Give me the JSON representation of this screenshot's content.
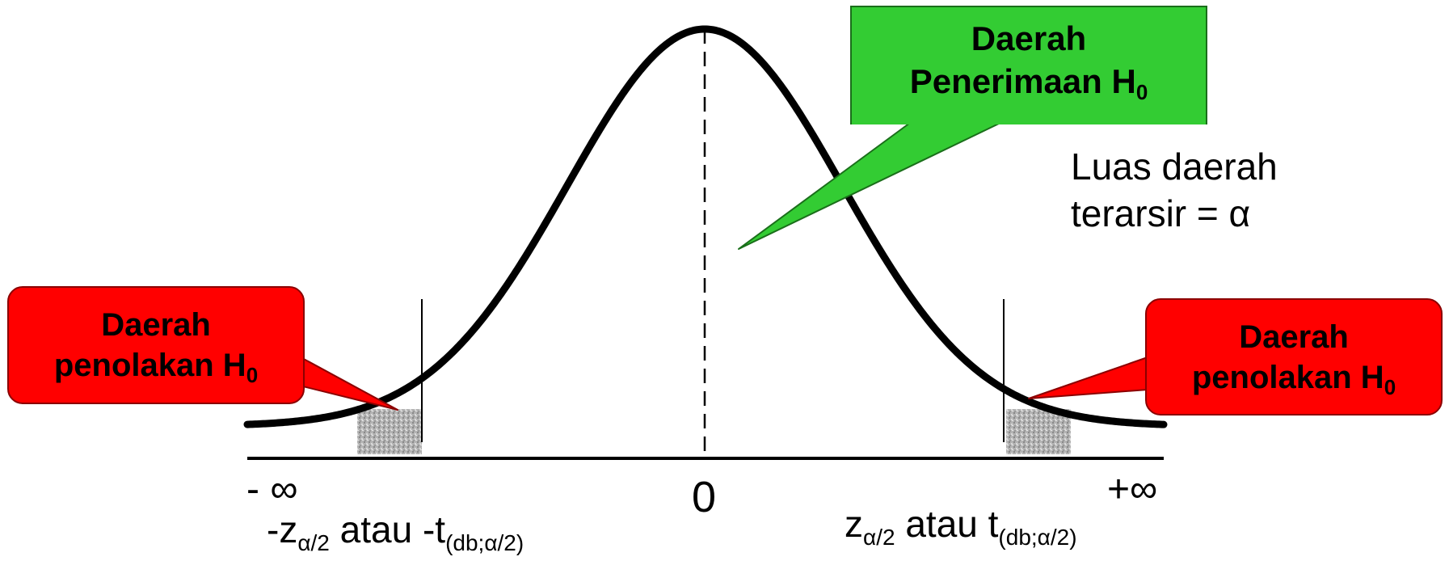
{
  "callouts": {
    "acceptance": {
      "line1": "Daerah",
      "line2": "Penerimaan H",
      "sub": "0",
      "color": "#33cc33"
    },
    "rejection_left": {
      "line1": "Daerah",
      "line2": "penolakan H",
      "sub": "0",
      "color": "#ff0000"
    },
    "rejection_right": {
      "line1": "Daerah",
      "line2": "penolakan H",
      "sub": "0",
      "color": "#ff0000"
    }
  },
  "note": {
    "line1": "Luas daerah",
    "line2": "terarsir = α"
  },
  "axis": {
    "left_label": "- ∞",
    "center_label": "0",
    "right_label": "+∞"
  },
  "critical": {
    "left": {
      "prefix": "-z",
      "sub1": "α/2",
      "mid": " atau -t",
      "sub2": "(db;α/2)"
    },
    "right": {
      "prefix": "z",
      "sub1": "α/2",
      "mid": " atau t",
      "sub2": "(db;α/2)"
    }
  },
  "style": {
    "shade_color": "#a8a8a8",
    "curve_color": "#000000"
  }
}
